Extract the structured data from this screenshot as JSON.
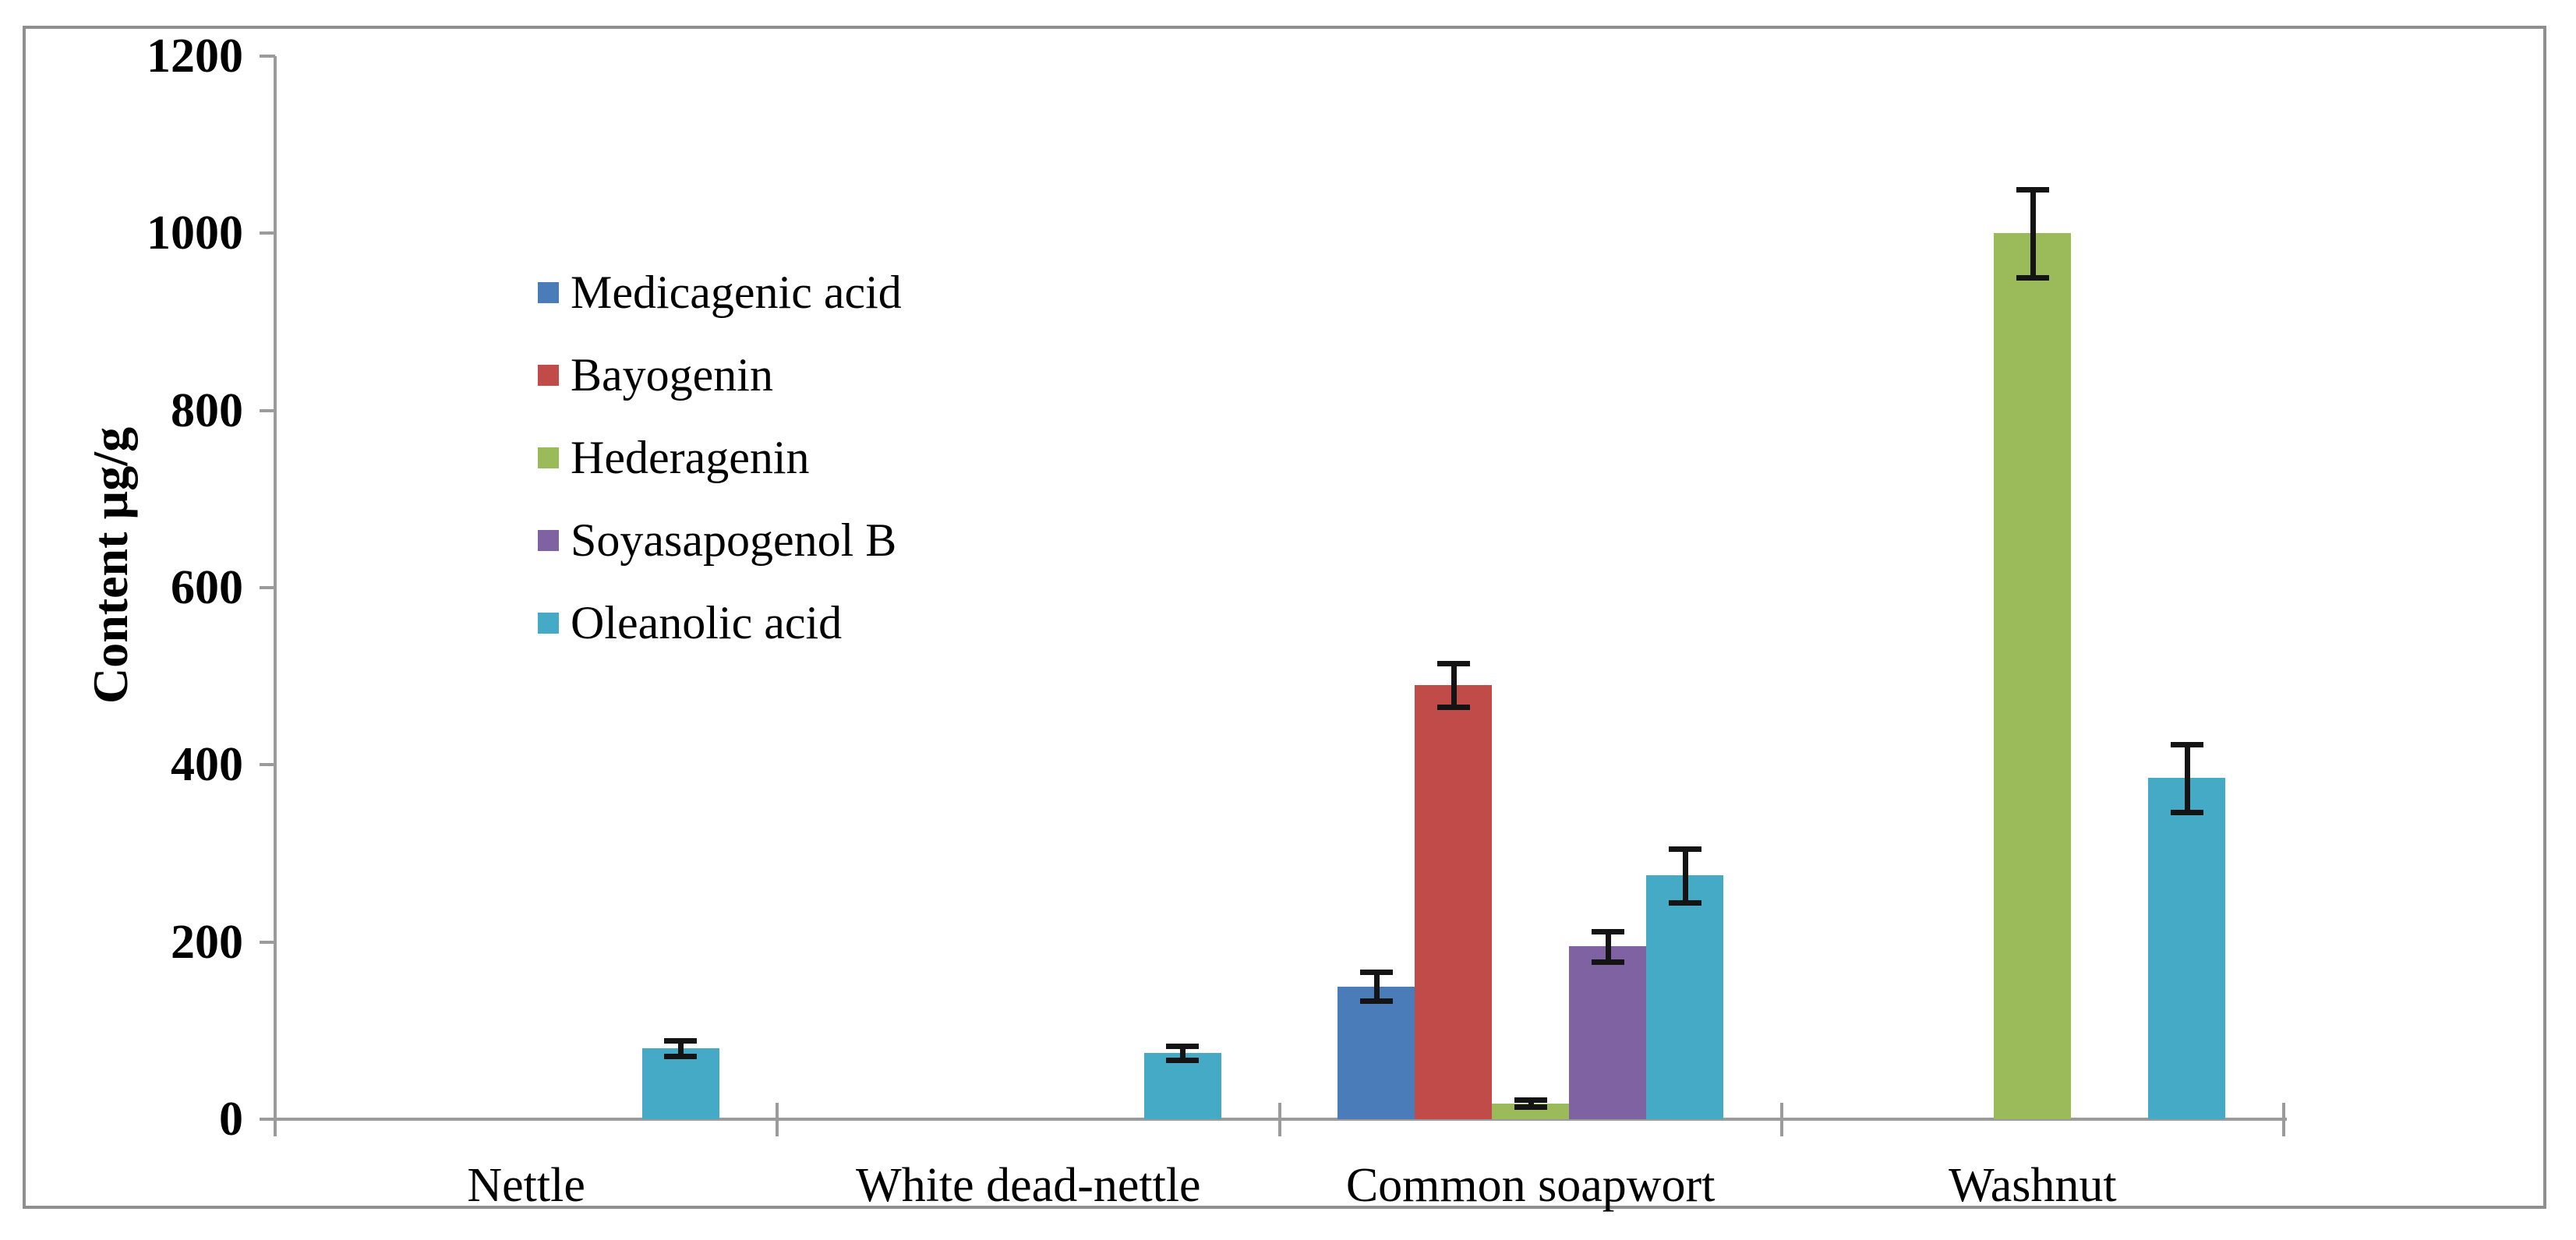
{
  "chart_data": {
    "type": "bar",
    "title": "",
    "ylabel": "Content µg/g",
    "xlabel": "",
    "ylim": [
      0,
      1200
    ],
    "yticks": [
      0,
      200,
      400,
      600,
      800,
      1000,
      1200
    ],
    "grid": false,
    "error_bars": true,
    "legend_position": "upper-left-inside",
    "categories": [
      "Nettle",
      "White dead-nettle",
      "Common soapwort",
      "Washnut"
    ],
    "series": [
      {
        "name": "Medicagenic acid",
        "color": "#4A7CBA",
        "values": [
          0,
          0,
          150,
          0
        ],
        "errors": [
          0,
          0,
          16,
          0
        ]
      },
      {
        "name": "Bayogenin",
        "color": "#C14B48",
        "values": [
          0,
          0,
          490,
          0
        ],
        "errors": [
          0,
          0,
          25,
          0
        ]
      },
      {
        "name": "Hederagenin",
        "color": "#9BBA59",
        "values": [
          0,
          0,
          18,
          1000
        ],
        "errors": [
          0,
          0,
          4,
          50
        ]
      },
      {
        "name": "Soyasapogenol B",
        "color": "#7E62A1",
        "values": [
          0,
          0,
          195,
          0
        ],
        "errors": [
          0,
          0,
          17,
          0
        ]
      },
      {
        "name": "Oleanolic acid",
        "color": "#45AAC6",
        "values": [
          80,
          75,
          275,
          385
        ],
        "errors": [
          9,
          8,
          30,
          38
        ]
      }
    ]
  },
  "style_colors": {
    "frame_border": "#8f8f8f",
    "axis": "#9b9b9b",
    "error_bar": "#141414",
    "text": "#000000",
    "background": "#ffffff"
  }
}
